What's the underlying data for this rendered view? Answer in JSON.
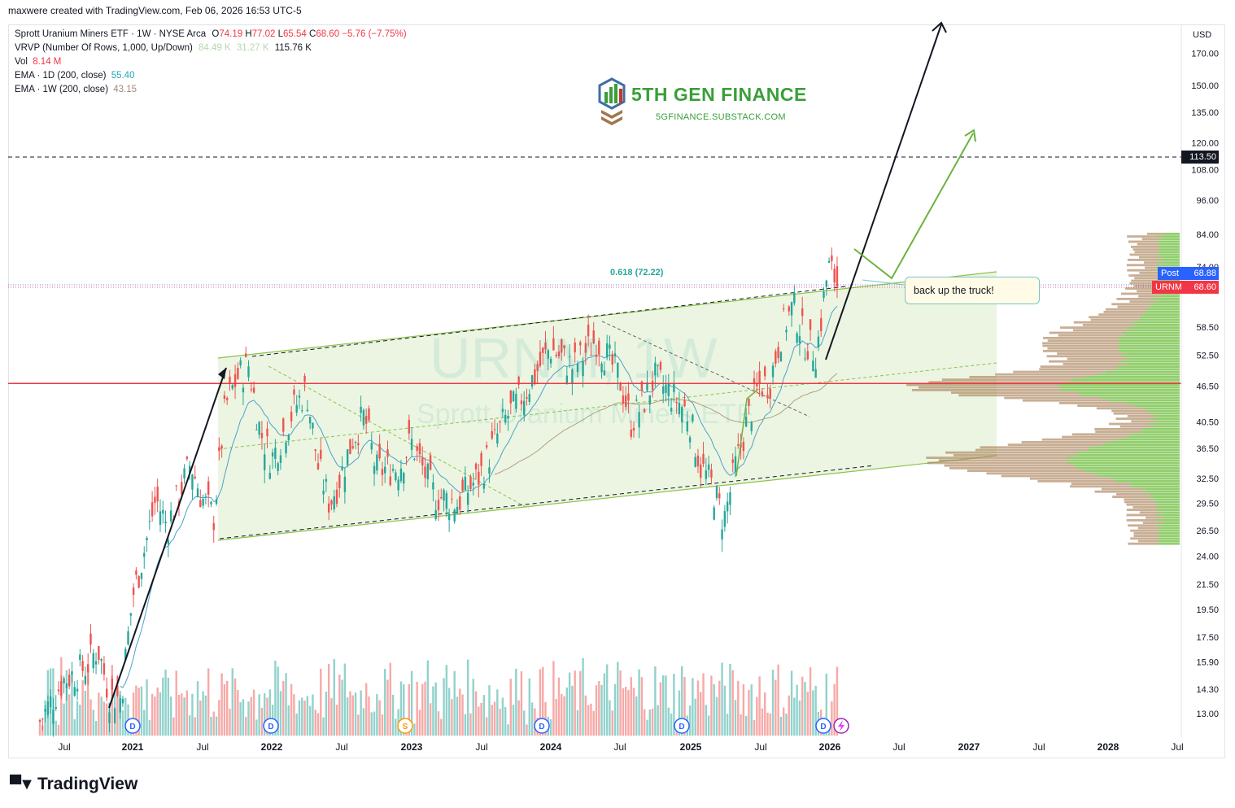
{
  "credit": "maxwere created with TradingView.com, Feb 06, 2026 16:53 UTC-5",
  "legend": {
    "symbol_line": "Sprott Uranium Miners ETF · 1W · NYSE Arca",
    "ohlc": {
      "o_label": "O",
      "o": "74.19",
      "h_label": "H",
      "h": "77.02",
      "l_label": "L",
      "l": "65.54",
      "c_label": "C",
      "c": "68.60",
      "change": "−5.76 (−7.75%)"
    },
    "vrvp_label": "VRVP (Number Of Rows, 1,000, Up/Down)",
    "vrvp_v1": "84.49 K",
    "vrvp_v2": "31.27 K",
    "vrvp_v3": "115.76 K",
    "vol_label": "Vol",
    "vol_value": "8.14 M",
    "ema1_label": "EMA · 1D (200, close)",
    "ema1_value": "55.40",
    "ema2_label": "EMA · 1W (200, close)",
    "ema2_value": "43.15"
  },
  "watermark": {
    "symbol": "URNM, 1W",
    "name": "Sprott Uranium Miners ETF"
  },
  "logo": {
    "title": "5TH GEN FINANCE",
    "subtitle": "5GFINANCE.SUBSTACK.COM"
  },
  "note": "back up the truck!",
  "fib_label": "0.618 (72.22)",
  "currency": "USD",
  "badges": {
    "target": "113.50",
    "post_label": "Post",
    "post_value": "68.88",
    "sym_label": "URNM",
    "sym_value": "68.60"
  },
  "footer": "TradingView",
  "colors": {
    "up": "#26a69a",
    "down": "#ef5350",
    "channel": "#8bc34a",
    "support": "#f23645",
    "ema1": "#4aa3c9",
    "ema2": "#b0a080"
  },
  "chart_data": {
    "type": "candlestick",
    "title": "Sprott Uranium Miners ETF · 1W · NYSE Arca",
    "y_axis": {
      "scale": "log",
      "ticks": [
        13.0,
        14.3,
        15.9,
        17.5,
        19.5,
        21.5,
        24.0,
        26.5,
        29.5,
        32.5,
        36.5,
        40.5,
        46.5,
        52.5,
        58.5,
        74.0,
        84.0,
        96.0,
        108.0,
        120.0,
        135.0,
        150.0,
        170.0
      ]
    },
    "x_axis": {
      "ticks": [
        "Jul",
        "2021",
        "Jul",
        "2022",
        "Jul",
        "2023",
        "Jul",
        "2024",
        "Jul",
        "2025",
        "Jul",
        "2026",
        "Jul",
        "2027",
        "Jul",
        "2028",
        "Jul"
      ]
    },
    "close_path": [
      [
        "2020-05",
        12.6
      ],
      [
        "2020-07",
        14.8
      ],
      [
        "2020-09",
        15.6
      ],
      [
        "2020-10",
        16.8
      ],
      [
        "2020-11",
        14.0
      ],
      [
        "2020-12",
        13.8
      ],
      [
        "2021-01",
        20.5
      ],
      [
        "2021-02",
        24.5
      ],
      [
        "2021-03",
        30.0
      ],
      [
        "2021-04",
        27.0
      ],
      [
        "2021-05",
        30.5
      ],
      [
        "2021-06",
        34.5
      ],
      [
        "2021-07",
        30.0
      ],
      [
        "2021-08",
        28.0
      ],
      [
        "2021-09",
        43.0
      ],
      [
        "2021-10",
        48.0
      ],
      [
        "2021-11",
        50.5
      ],
      [
        "2021-12",
        39.0
      ],
      [
        "2022-01",
        35.0
      ],
      [
        "2022-03",
        43.0
      ],
      [
        "2022-04",
        46.0
      ],
      [
        "2022-05",
        34.0
      ],
      [
        "2022-06",
        29.5
      ],
      [
        "2022-07",
        33.0
      ],
      [
        "2022-08",
        38.0
      ],
      [
        "2022-09",
        41.5
      ],
      [
        "2022-10",
        33.5
      ],
      [
        "2022-12",
        34.0
      ],
      [
        "2023-01",
        37.5
      ],
      [
        "2023-03",
        30.5
      ],
      [
        "2023-05",
        29.5
      ],
      [
        "2023-07",
        33.0
      ],
      [
        "2023-09",
        40.5
      ],
      [
        "2023-11",
        46.0
      ],
      [
        "2024-01",
        54.0
      ],
      [
        "2024-03",
        50.0
      ],
      [
        "2024-05",
        56.0
      ],
      [
        "2024-07",
        48.0
      ],
      [
        "2024-08",
        40.5
      ],
      [
        "2024-09",
        43.5
      ],
      [
        "2024-10",
        48.0
      ],
      [
        "2024-12",
        44.0
      ],
      [
        "2025-01",
        41.5
      ],
      [
        "2025-02",
        34.0
      ],
      [
        "2025-03",
        31.5
      ],
      [
        "2025-04",
        27.5
      ],
      [
        "2025-05",
        34.0
      ],
      [
        "2025-06",
        40.5
      ],
      [
        "2025-07",
        46.5
      ],
      [
        "2025-08",
        47.5
      ],
      [
        "2025-09",
        58.0
      ],
      [
        "2025-10",
        63.5
      ],
      [
        "2025-11",
        55.5
      ],
      [
        "2025-12",
        53.0
      ],
      [
        "2026-01",
        74.0
      ],
      [
        "2026-02",
        68.6
      ]
    ],
    "support_line": 47.0,
    "target_line": 113.5,
    "last_price": 68.6,
    "post_price": 68.88,
    "volume_peak": "23 M"
  }
}
